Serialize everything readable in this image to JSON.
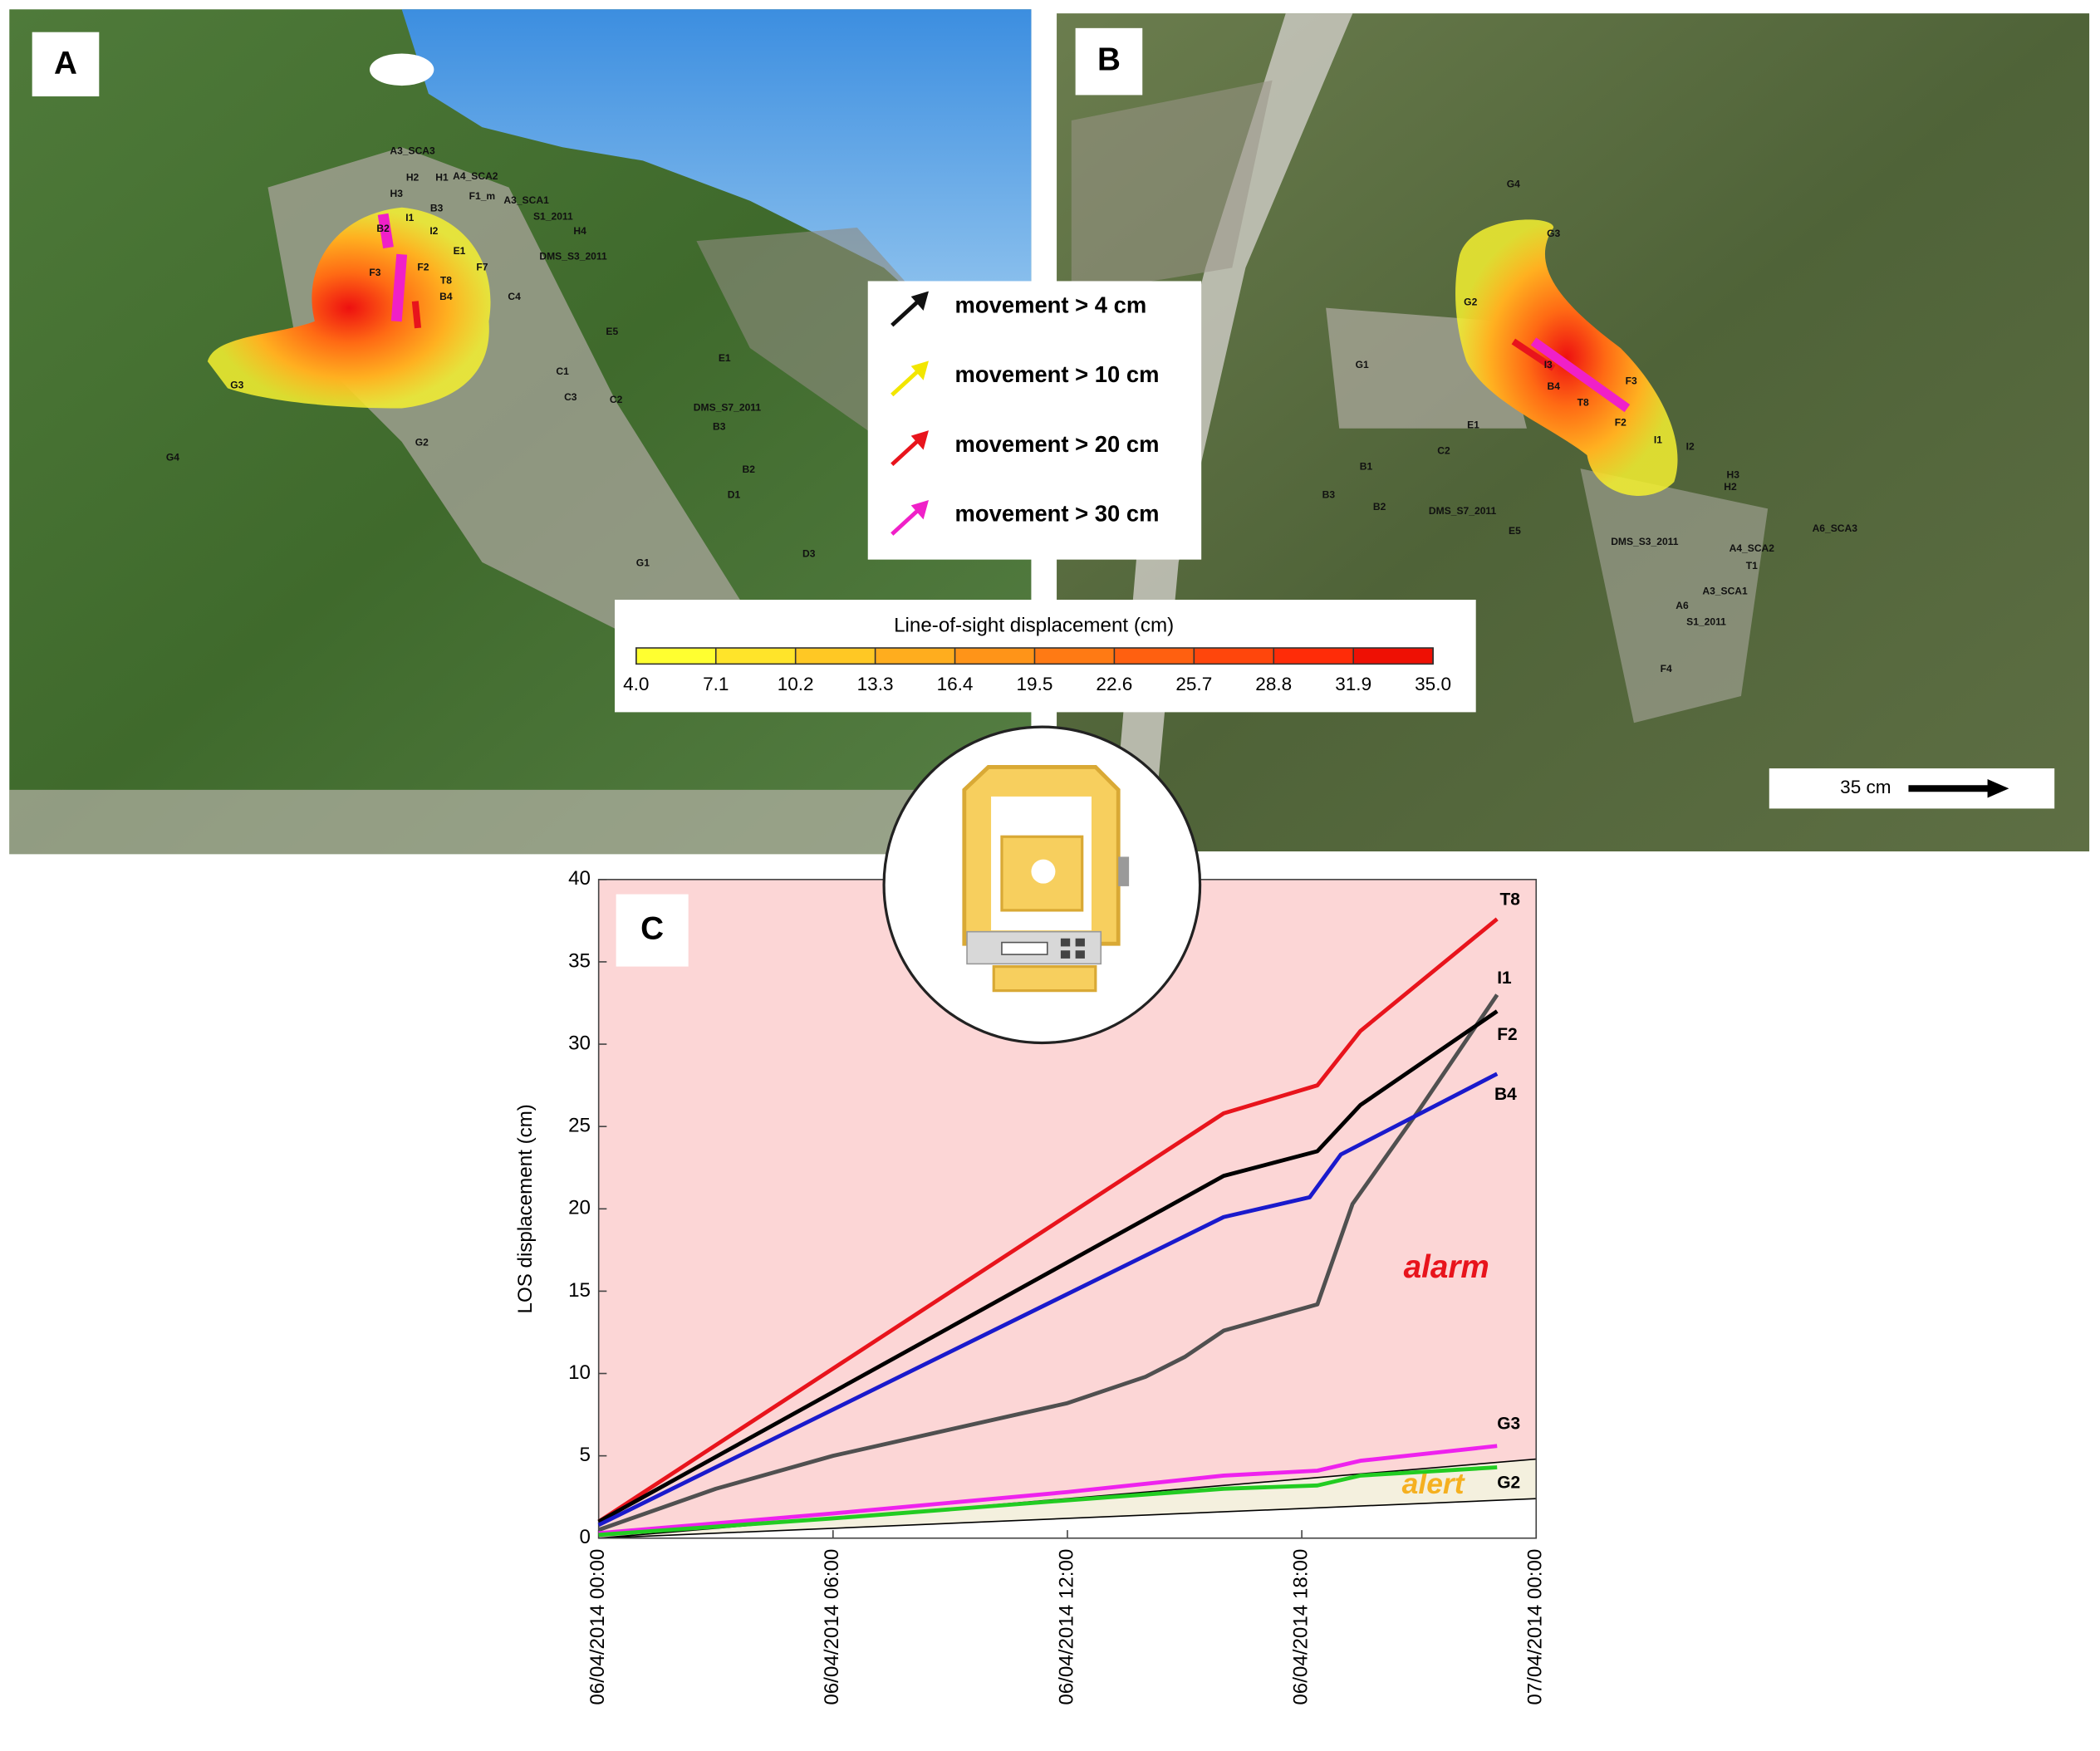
{
  "panel_a": {
    "label": "A",
    "points": [
      "A3_SCA3",
      "H2",
      "H1",
      "A4_SCA2",
      "H3",
      "F1_m",
      "A3_SCA1",
      "B3",
      "I1",
      "S1_2011",
      "B2",
      "I2",
      "H4",
      "E1",
      "DMS_S3_2011",
      "F7",
      "F3",
      "F2",
      "T8",
      "B4",
      "C4",
      "E5",
      "E1",
      "C1",
      "G3",
      "C3",
      "C2",
      "DMS_S7_2011",
      "B3",
      "G2",
      "G4",
      "B2",
      "D1",
      "D3",
      "G1"
    ]
  },
  "panel_b": {
    "label": "B",
    "points": [
      "G4",
      "G3",
      "G2",
      "G1",
      "I3",
      "B4",
      "T8",
      "F3",
      "F2",
      "I1",
      "E1",
      "C2",
      "B1",
      "B3",
      "B2",
      "DMS_S7_2011",
      "E5",
      "I2",
      "H3",
      "H2",
      "DMS_S3_2011",
      "A4_SCA2",
      "A6_SCA3",
      "T1",
      "A3_SCA1",
      "A6",
      "S1_2011",
      "F4"
    ],
    "scale_bar": "35 cm"
  },
  "movement_legend": [
    {
      "label": "movement > 4 cm",
      "color": "#111111"
    },
    {
      "label": "movement > 10 cm",
      "color": "#f2e600"
    },
    {
      "label": "movement > 20 cm",
      "color": "#e8141c"
    },
    {
      "label": "movement > 30 cm",
      "color": "#f020c8"
    }
  ],
  "colorbar": {
    "title": "Line-of-sight displacement (cm)",
    "colors": [
      "#ffff30",
      "#ffe42a",
      "#ffc824",
      "#ffad1e",
      "#ff9418",
      "#ff7a14",
      "#ff6010",
      "#ff460c",
      "#ff2c08",
      "#ee1004"
    ],
    "ticks": [
      {
        "value": 4,
        "label": "4.0"
      },
      {
        "value": 7.1,
        "label": "7.1"
      },
      {
        "value": 10.2,
        "label": "10.2"
      },
      {
        "value": 13.3,
        "label": "13.3"
      },
      {
        "value": 16.4,
        "label": "16.4"
      },
      {
        "value": 19.5,
        "label": "19.5"
      },
      {
        "value": 22.6,
        "label": "22.6"
      },
      {
        "value": 25.7,
        "label": "25.7"
      },
      {
        "value": 28.8,
        "label": "28.8"
      },
      {
        "value": 31.9,
        "label": "31.9"
      },
      {
        "value": 35,
        "label": "35.0"
      }
    ]
  },
  "chart_data": {
    "type": "line",
    "panel_label": "C",
    "y_label": "LOS displacement (cm)",
    "xlim": [
      0,
      24
    ],
    "xticks": [
      {
        "value": 0,
        "label": "06/04/2014 00:00"
      },
      {
        "value": 6,
        "label": "06/04/2014 06:00"
      },
      {
        "value": 12,
        "label": "06/04/2014 12:00"
      },
      {
        "value": 18,
        "label": "06/04/2014 18:00"
      },
      {
        "value": 24,
        "label": "07/04/2014 00:00"
      }
    ],
    "ylim": [
      0,
      40
    ],
    "yticks": [
      0,
      5,
      10,
      15,
      20,
      25,
      30,
      35,
      40
    ],
    "zones": [
      {
        "name": "alarm",
        "color": "#e8141c",
        "fill": "#fcd6d6",
        "x": [
          0,
          24
        ],
        "values": [
          0,
          4.8
        ]
      },
      {
        "name": "alert",
        "color": "#f5b020",
        "fill": "#f4f0de",
        "x": [
          0,
          24
        ],
        "values": [
          0,
          2.4
        ]
      }
    ],
    "series": [
      {
        "name": "T8",
        "color": "#e8141c",
        "x": [
          0,
          16,
          18.4,
          19.5,
          23
        ],
        "values": [
          1,
          25.8,
          27.5,
          30.8,
          37.6
        ]
      },
      {
        "name": "I1",
        "color": "#505050",
        "x": [
          0,
          3,
          6,
          9,
          12,
          14,
          15,
          16,
          18.4,
          19.3,
          21,
          23
        ],
        "values": [
          0.5,
          3,
          5,
          6.6,
          8.2,
          9.8,
          11,
          12.6,
          14.2,
          20.3,
          26,
          33
        ]
      },
      {
        "name": "F2",
        "color": "#000000",
        "x": [
          0,
          16,
          18.4,
          19.5,
          23
        ],
        "values": [
          1,
          22,
          23.5,
          26.3,
          32
        ]
      },
      {
        "name": "B4",
        "color": "#1a1acc",
        "x": [
          0,
          16,
          18.2,
          19,
          23
        ],
        "values": [
          0.8,
          19.5,
          20.7,
          23.3,
          28.2
        ]
      },
      {
        "name": "G3",
        "color": "#ee22ee",
        "x": [
          0,
          6,
          12,
          16,
          18.4,
          19.5,
          23
        ],
        "values": [
          0.3,
          1.5,
          2.8,
          3.8,
          4.1,
          4.7,
          5.6
        ]
      },
      {
        "name": "G2",
        "color": "#22cc22",
        "x": [
          0,
          6,
          12,
          16,
          18.4,
          19.5,
          23
        ],
        "values": [
          0.2,
          1.2,
          2.3,
          3,
          3.2,
          3.8,
          4.3
        ]
      }
    ]
  }
}
